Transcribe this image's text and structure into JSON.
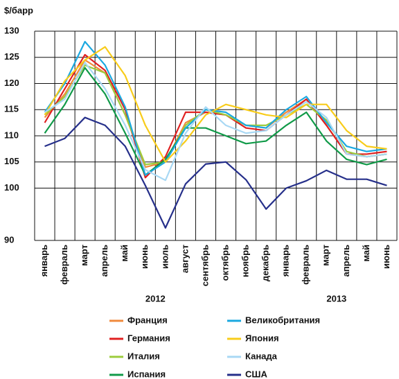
{
  "chart_data": {
    "type": "line",
    "title": "$/барр",
    "categories": [
      "январь",
      "февраль",
      "март",
      "апрель",
      "май",
      "июнь",
      "июль",
      "август",
      "сентябрь",
      "октябрь",
      "ноябрь",
      "декабрь",
      "январь",
      "февраль",
      "март",
      "апрель",
      "май",
      "июнь"
    ],
    "annotations": [
      "2012",
      "2013"
    ],
    "ylim": [
      90,
      130
    ],
    "yticks": [
      90,
      100,
      105,
      110,
      115,
      120,
      125,
      130
    ],
    "grid": true,
    "series": [
      {
        "name": "Франция",
        "color": "#f08a3c",
        "values": [
          113.5,
          118,
          124.5,
          122,
          114,
          104,
          105,
          112.5,
          114.5,
          114,
          112,
          111.5,
          114.5,
          117,
          112,
          106.5,
          106,
          106.5
        ]
      },
      {
        "name": "Германия",
        "color": "#e02020",
        "values": [
          112.5,
          119,
          125.5,
          122.5,
          115,
          102,
          106,
          114.5,
          114.5,
          114,
          111.5,
          111,
          114,
          117,
          112,
          106.5,
          106.5,
          107
        ]
      },
      {
        "name": "Италия",
        "color": "#9ccc3c",
        "values": [
          114,
          117.5,
          123.5,
          122,
          114,
          104.5,
          105,
          112,
          115,
          114,
          112,
          112,
          114,
          116,
          113,
          107,
          106,
          106.5
        ]
      },
      {
        "name": "Испания",
        "color": "#109a48",
        "values": [
          110.5,
          116,
          123,
          118,
          110.5,
          102.5,
          105.5,
          111.5,
          111.5,
          110,
          108.5,
          109,
          112,
          114.5,
          109,
          105.5,
          104.5,
          105.5
        ]
      },
      {
        "name": "Великобритания",
        "color": "#1aa8e0",
        "values": [
          114.5,
          120,
          128,
          123.5,
          115.5,
          102.5,
          105,
          111.5,
          115,
          114.5,
          112,
          111.5,
          115,
          117.5,
          112.5,
          108,
          107,
          107.5
        ]
      },
      {
        "name": "Япония",
        "color": "#f8cc1a",
        "values": [
          114,
          120.5,
          124.5,
          127,
          121.5,
          112,
          105,
          109,
          114,
          116,
          115,
          114,
          113.5,
          116,
          116,
          111,
          108,
          107.5
        ]
      },
      {
        "name": "Канада",
        "color": "#a8d8f4",
        "values": [
          114.5,
          117,
          124,
          119,
          112,
          103.5,
          101.5,
          110.5,
          115.5,
          112,
          110.5,
          111,
          114,
          116.5,
          113.5,
          106.5,
          106,
          106.5
        ]
      },
      {
        "name": "США",
        "color": "#252f8a",
        "values": [
          108,
          109.5,
          113.5,
          112,
          108,
          100.5,
          92.4,
          100.8,
          104.6,
          105,
          101.6,
          96,
          100,
          101.4,
          103.4,
          101.7,
          101.7,
          100.5
        ]
      }
    ]
  }
}
